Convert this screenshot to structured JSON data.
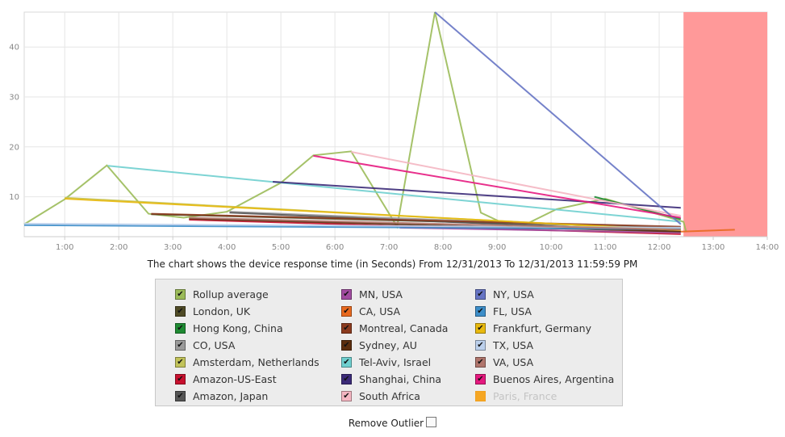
{
  "caption": "The chart shows the device response time (in Seconds) From 12/31/2013 To 12/31/2013 11:59:59 PM",
  "remove_outlier_label": "Remove Outlier",
  "chart_data": {
    "type": "line",
    "x_unit": "hours",
    "xlim": [
      0.25,
      14.0
    ],
    "ylim": [
      2.0,
      47.0
    ],
    "x_ticks": [
      1,
      2,
      3,
      4,
      5,
      6,
      7,
      8,
      9,
      10,
      11,
      12,
      13,
      14
    ],
    "x_tick_labels": [
      "1:00",
      "2:00",
      "3:00",
      "4:00",
      "5:00",
      "6:00",
      "7:00",
      "8:00",
      "9:00",
      "10:00",
      "11:00",
      "12:00",
      "13:00",
      "14:00"
    ],
    "y_ticks": [
      10,
      20,
      30,
      40
    ],
    "y_tick_labels": [
      "10",
      "20",
      "30",
      "40"
    ],
    "grid": true,
    "highlight_band": {
      "from": 12.45,
      "to": 14.0,
      "color": "#ff9999"
    },
    "series": [
      {
        "name": "Rollup average",
        "color": "#9bbb59",
        "points": [
          [
            0.25,
            4.5
          ],
          [
            1.0,
            9.5
          ],
          [
            1.78,
            16.3
          ],
          [
            2.55,
            6.6
          ],
          [
            3.2,
            5.8
          ],
          [
            4.0,
            7.0
          ],
          [
            5.0,
            12.8
          ],
          [
            5.6,
            18.3
          ],
          [
            6.3,
            19.1
          ],
          [
            7.15,
            4.0
          ],
          [
            7.85,
            47.0
          ],
          [
            8.7,
            6.8
          ],
          [
            9.35,
            3.5
          ],
          [
            10.1,
            7.5
          ],
          [
            11.0,
            9.6
          ],
          [
            12.45,
            5.0
          ],
          [
            12.5,
            3.0
          ]
        ]
      },
      {
        "name": "London, UK",
        "color": "#4f4b26",
        "points": [
          [
            2.6,
            6.5
          ],
          [
            12.4,
            3.8
          ]
        ]
      },
      {
        "name": "Hong Kong, China",
        "color": "#1e8a32",
        "points": [
          [
            10.8,
            10.0
          ],
          [
            12.4,
            5.5
          ]
        ]
      },
      {
        "name": "CO, USA",
        "color": "#9a9a9a",
        "points": [
          [
            4.05,
            7.0
          ],
          [
            12.4,
            3.5
          ]
        ]
      },
      {
        "name": "Amsterdam, Netherlands",
        "color": "#c2c35a",
        "points": [
          [
            1.0,
            9.8
          ],
          [
            12.4,
            3.2
          ]
        ]
      },
      {
        "name": "Amazon-US-East",
        "color": "#c8102e",
        "points": [
          [
            3.3,
            5.4
          ],
          [
            12.4,
            2.5
          ]
        ]
      },
      {
        "name": "Amazon, Japan",
        "color": "#555555",
        "points": [
          [
            4.05,
            6.8
          ],
          [
            12.4,
            3.0
          ]
        ]
      },
      {
        "name": "MN, USA",
        "color": "#a14ca0",
        "points": [
          [
            7.2,
            3.8
          ],
          [
            12.4,
            2.8
          ]
        ]
      },
      {
        "name": "CA, USA",
        "color": "#e8691e",
        "points": [
          [
            12.4,
            3.0
          ],
          [
            13.4,
            3.4
          ]
        ]
      },
      {
        "name": "Montreal, Canada",
        "color": "#8b3a1e",
        "points": [
          [
            2.6,
            6.6
          ],
          [
            12.4,
            4.0
          ]
        ]
      },
      {
        "name": "Sydney, AU",
        "color": "#5c2e0e",
        "points": [
          [
            3.3,
            5.6
          ],
          [
            12.4,
            3.0
          ]
        ]
      },
      {
        "name": "Tel-Aviv, Israel",
        "color": "#6fcfcf",
        "points": [
          [
            1.8,
            16.2
          ],
          [
            12.4,
            5.0
          ]
        ]
      },
      {
        "name": "Shanghai, China",
        "color": "#3b2a78",
        "points": [
          [
            4.85,
            13.0
          ],
          [
            12.4,
            7.8
          ]
        ]
      },
      {
        "name": "South Africa",
        "color": "#f4b6c2",
        "points": [
          [
            6.3,
            19.0
          ],
          [
            12.4,
            6.2
          ]
        ]
      },
      {
        "name": "NY, USA",
        "color": "#6674c4",
        "points": [
          [
            7.85,
            47.0
          ],
          [
            12.4,
            4.5
          ]
        ]
      },
      {
        "name": "FL, USA",
        "color": "#3d8ec9",
        "points": [
          [
            0.25,
            4.3
          ],
          [
            12.4,
            3.5
          ]
        ]
      },
      {
        "name": "Frankfurt, Germany",
        "color": "#e8b90e",
        "points": [
          [
            1.0,
            9.6
          ],
          [
            12.4,
            3.3
          ]
        ]
      },
      {
        "name": "TX, USA",
        "color": "#bcd0ec",
        "points": [
          [
            0.25,
            4.6
          ],
          [
            12.4,
            3.8
          ]
        ]
      },
      {
        "name": "VA, USA",
        "color": "#b0756c",
        "points": [
          [
            3.3,
            5.8
          ],
          [
            12.4,
            3.4
          ]
        ]
      },
      {
        "name": "Buenos Aires, Argentina",
        "color": "#e5197f",
        "points": [
          [
            5.6,
            18.2
          ],
          [
            12.4,
            5.8
          ]
        ]
      },
      {
        "name": "Paris, France",
        "color": "#f5a623",
        "disabled": true,
        "points": []
      }
    ]
  },
  "legend": {
    "items": [
      {
        "label": "Rollup average",
        "color": "#9bbb59",
        "checked": true
      },
      {
        "label": "MN, USA",
        "color": "#a14ca0",
        "checked": true
      },
      {
        "label": "NY, USA",
        "color": "#6674c4",
        "checked": true
      },
      {
        "label": "London, UK",
        "color": "#4f4b26",
        "checked": true
      },
      {
        "label": "CA, USA",
        "color": "#e8691e",
        "checked": true
      },
      {
        "label": "FL, USA",
        "color": "#3d8ec9",
        "checked": true
      },
      {
        "label": "Hong Kong, China",
        "color": "#1e8a32",
        "checked": true
      },
      {
        "label": "Montreal, Canada",
        "color": "#8b3a1e",
        "checked": true
      },
      {
        "label": "Frankfurt, Germany",
        "color": "#e8b90e",
        "checked": true
      },
      {
        "label": "CO, USA",
        "color": "#9a9a9a",
        "checked": true
      },
      {
        "label": "Sydney, AU",
        "color": "#5c2e0e",
        "checked": true
      },
      {
        "label": "TX, USA",
        "color": "#bcd0ec",
        "checked": true
      },
      {
        "label": "Amsterdam, Netherlands",
        "color": "#c2c35a",
        "checked": true
      },
      {
        "label": "Tel-Aviv, Israel",
        "color": "#6fcfcf",
        "checked": true
      },
      {
        "label": "VA, USA",
        "color": "#b0756c",
        "checked": true
      },
      {
        "label": "Amazon-US-East",
        "color": "#c8102e",
        "checked": true
      },
      {
        "label": "Shanghai, China",
        "color": "#3b2a78",
        "checked": true
      },
      {
        "label": "Buenos Aires, Argentina",
        "color": "#e5197f",
        "checked": true
      },
      {
        "label": "Amazon, Japan",
        "color": "#555555",
        "checked": true
      },
      {
        "label": "South Africa",
        "color": "#f4b6c2",
        "checked": true
      },
      {
        "label": "Paris, France",
        "color": "#f5a623",
        "checked": false
      }
    ]
  }
}
